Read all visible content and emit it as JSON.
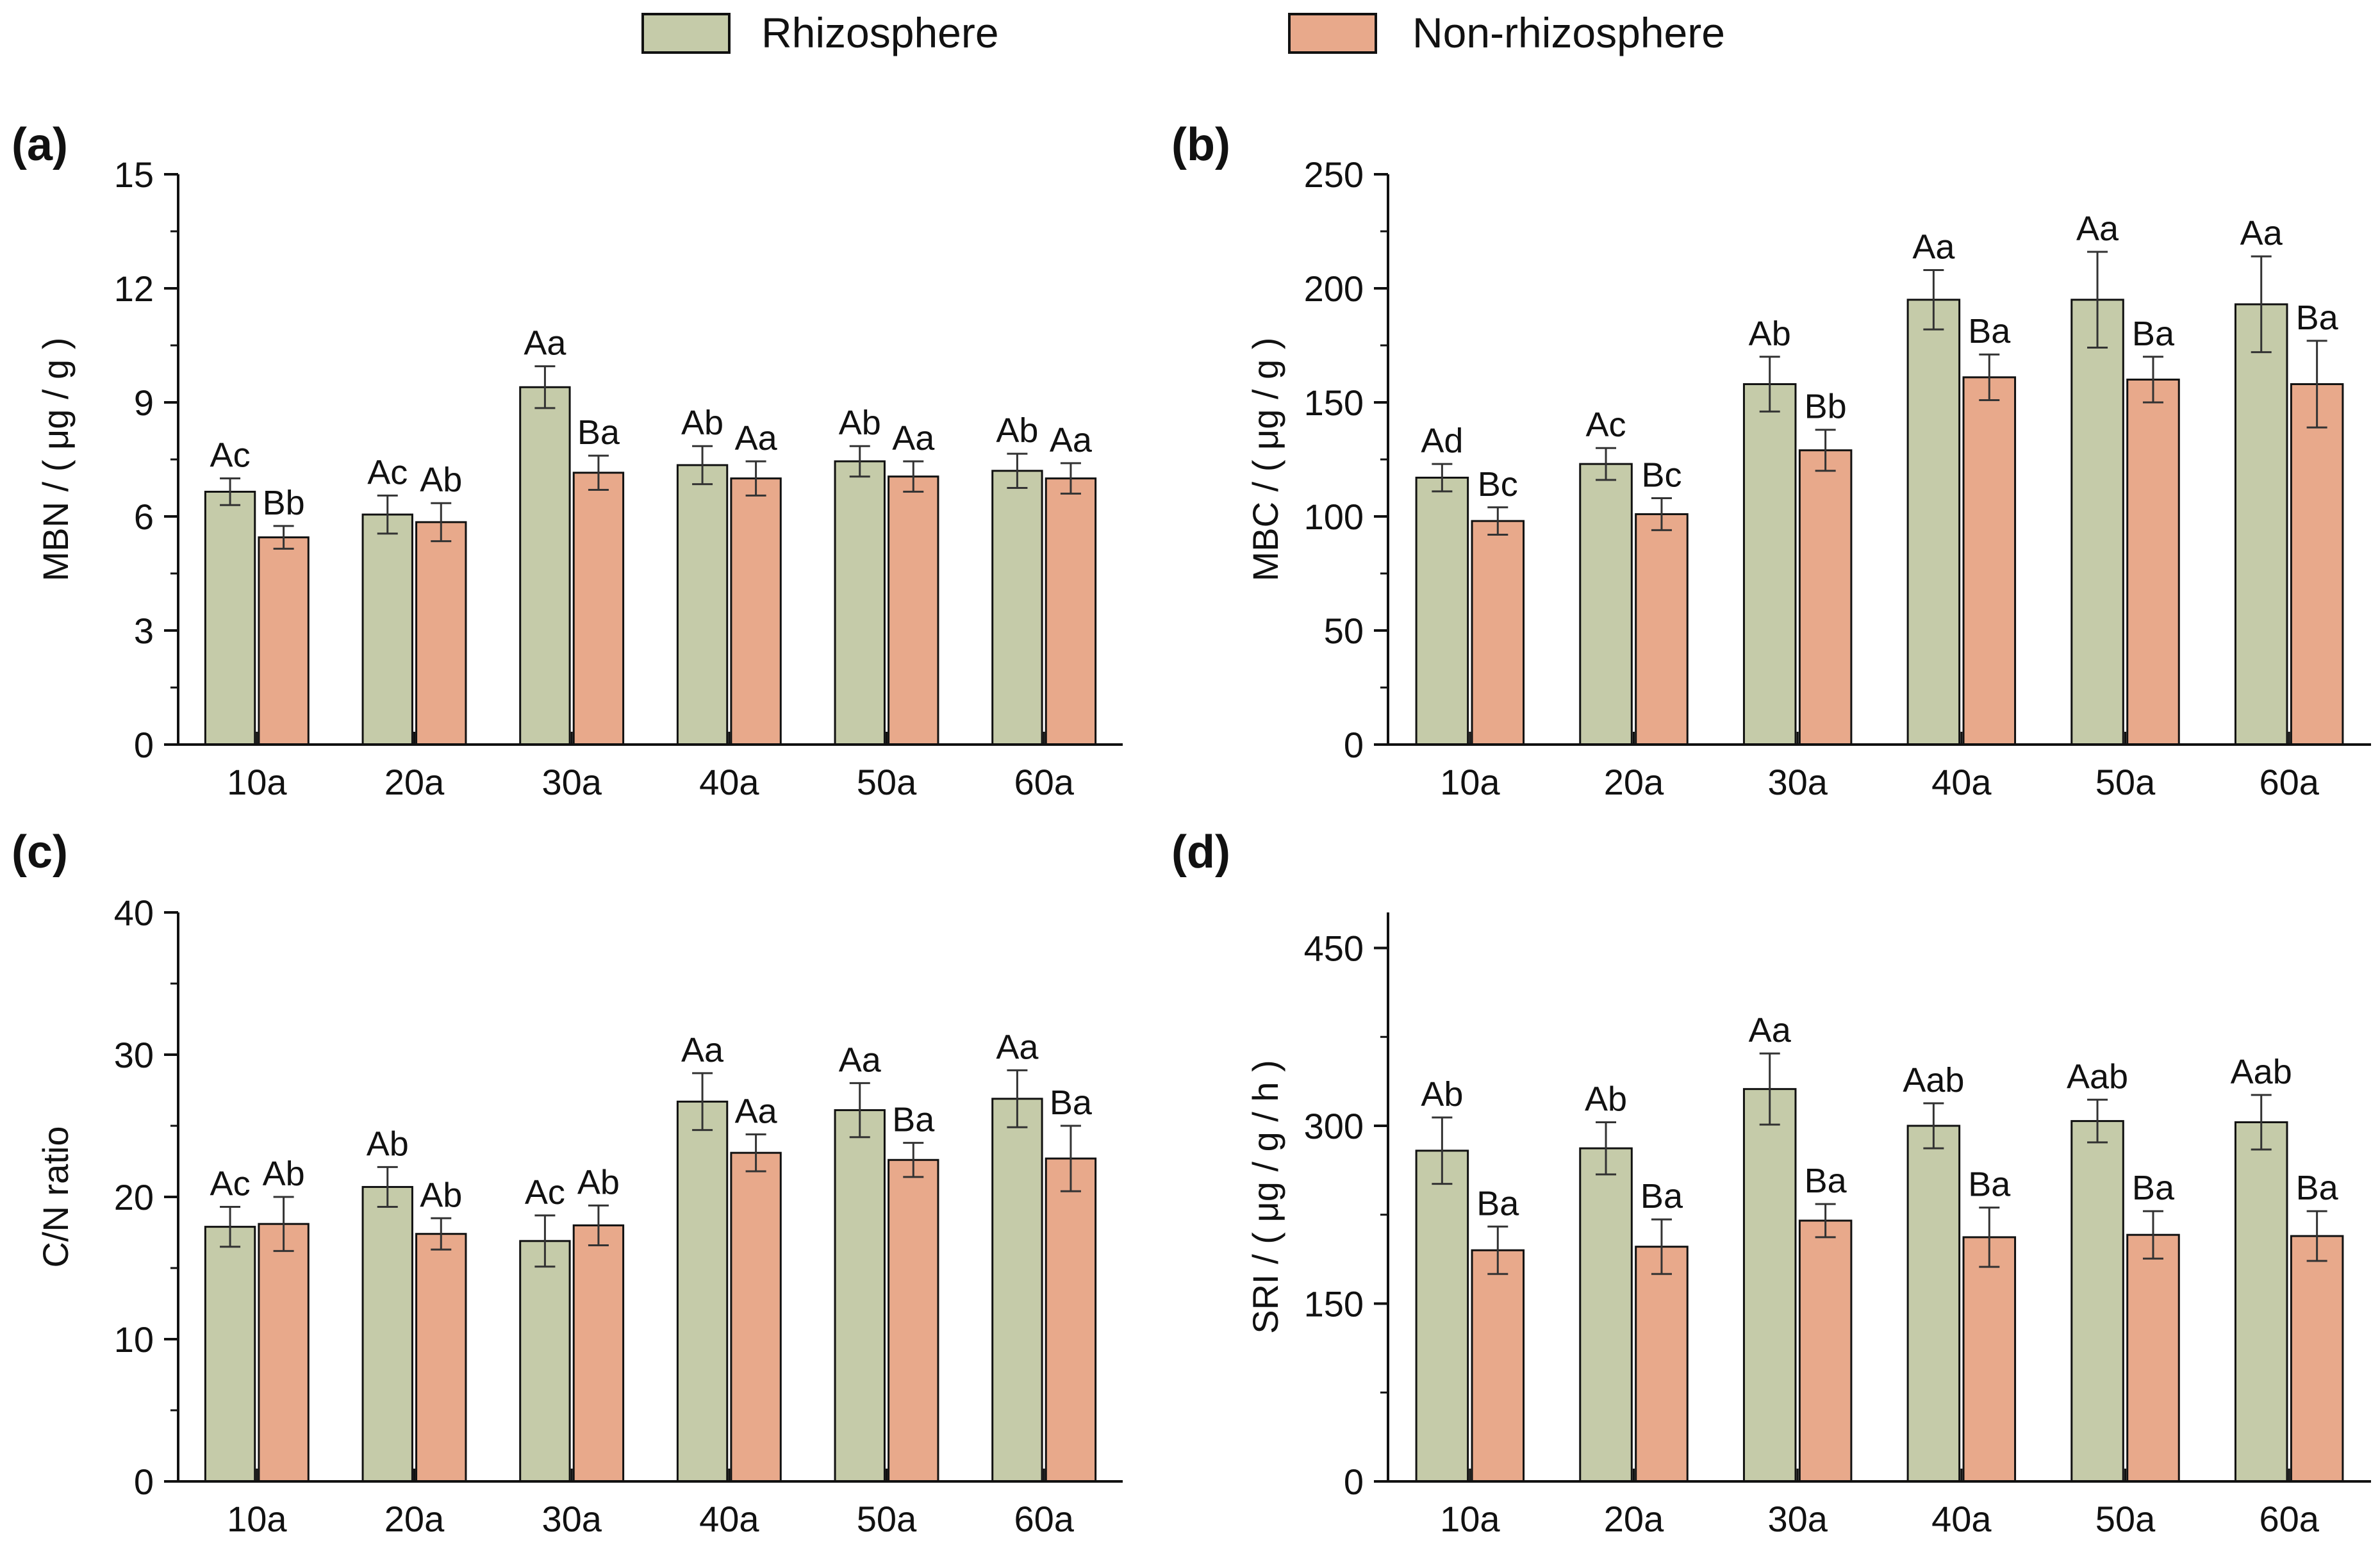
{
  "legend": {
    "items": [
      {
        "label": "Rhizosphere",
        "color": "#c5cba9"
      },
      {
        "label": "Non-rhizosphere",
        "color": "#e8a98b"
      }
    ]
  },
  "chart_data": [
    {
      "type": "bar",
      "panel_label": "(a)",
      "categories": [
        "10a",
        "20a",
        "30a",
        "40a",
        "50a",
        "60a"
      ],
      "ylabel": "MBN / ( μg / g )",
      "ylim": [
        0,
        15
      ],
      "yticks": [
        0,
        3,
        6,
        9,
        12,
        15
      ],
      "series": [
        {
          "name": "Rhizosphere",
          "color": "#c5cba9",
          "values": [
            6.65,
            6.05,
            9.4,
            7.35,
            7.45,
            7.2
          ],
          "errors": [
            0.35,
            0.5,
            0.55,
            0.5,
            0.4,
            0.45
          ],
          "letters": [
            "Ac",
            "Ac",
            "Aa",
            "Ab",
            "Ab",
            "Ab"
          ]
        },
        {
          "name": "Non-rhizosphere",
          "color": "#e8a98b",
          "values": [
            5.45,
            5.85,
            7.15,
            7.0,
            7.05,
            7.0
          ],
          "errors": [
            0.3,
            0.5,
            0.45,
            0.45,
            0.4,
            0.4
          ],
          "letters": [
            "Bb",
            "Ab",
            "Ba",
            "Aa",
            "Aa",
            "Aa"
          ]
        }
      ]
    },
    {
      "type": "bar",
      "panel_label": "(b)",
      "categories": [
        "10a",
        "20a",
        "30a",
        "40a",
        "50a",
        "60a"
      ],
      "ylabel": "MBC / ( μg / g )",
      "ylim": [
        0,
        250
      ],
      "yticks": [
        0,
        50,
        100,
        150,
        200,
        250
      ],
      "series": [
        {
          "name": "Rhizosphere",
          "color": "#c5cba9",
          "values": [
            117,
            123,
            158,
            195,
            195,
            193
          ],
          "errors": [
            6,
            7,
            12,
            13,
            21,
            21
          ],
          "letters": [
            "Ad",
            "Ac",
            "Ab",
            "Aa",
            "Aa",
            "Aa"
          ]
        },
        {
          "name": "Non-rhizosphere",
          "color": "#e8a98b",
          "values": [
            98,
            101,
            129,
            161,
            160,
            158
          ],
          "errors": [
            6,
            7,
            9,
            10,
            10,
            19
          ],
          "letters": [
            "Bc",
            "Bc",
            "Bb",
            "Ba",
            "Ba",
            "Ba"
          ]
        }
      ]
    },
    {
      "type": "bar",
      "panel_label": "(c)",
      "categories": [
        "10a",
        "20a",
        "30a",
        "40a",
        "50a",
        "60a"
      ],
      "ylabel": "C/N ratio",
      "ylim": [
        0,
        40
      ],
      "yticks": [
        0,
        10,
        20,
        30,
        40
      ],
      "series": [
        {
          "name": "Rhizosphere",
          "color": "#c5cba9",
          "values": [
            17.9,
            20.7,
            16.9,
            26.7,
            26.1,
            26.9
          ],
          "errors": [
            1.4,
            1.4,
            1.8,
            2.0,
            1.9,
            2.0
          ],
          "letters": [
            "Ac",
            "Ab",
            "Ac",
            "Aa",
            "Aa",
            "Aa"
          ]
        },
        {
          "name": "Non-rhizosphere",
          "color": "#e8a98b",
          "values": [
            18.1,
            17.4,
            18.0,
            23.1,
            22.6,
            22.7
          ],
          "errors": [
            1.9,
            1.1,
            1.4,
            1.3,
            1.2,
            2.3
          ],
          "letters": [
            "Ab",
            "Ab",
            "Ab",
            "Aa",
            "Ba",
            "Ba"
          ]
        }
      ]
    },
    {
      "type": "bar",
      "panel_label": "(d)",
      "categories": [
        "10a",
        "20a",
        "30a",
        "40a",
        "50a",
        "60a"
      ],
      "ylabel": "SRI / ( μg / g / h )",
      "ylim": [
        0,
        480
      ],
      "yticks": [
        0,
        150,
        300,
        450
      ],
      "series": [
        {
          "name": "Rhizosphere",
          "color": "#c5cba9",
          "values": [
            279,
            281,
            331,
            300,
            304,
            303
          ],
          "errors": [
            28,
            22,
            30,
            19,
            18,
            23
          ],
          "letters": [
            "Ab",
            "Ab",
            "Aa",
            "Aab",
            "Aab",
            "Aab"
          ]
        },
        {
          "name": "Non-rhizosphere",
          "color": "#e8a98b",
          "values": [
            195,
            198,
            220,
            206,
            208,
            207
          ],
          "errors": [
            20,
            23,
            14,
            25,
            20,
            21
          ],
          "letters": [
            "Ba",
            "Ba",
            "Ba",
            "Ba",
            "Ba",
            "Ba"
          ]
        }
      ]
    }
  ]
}
